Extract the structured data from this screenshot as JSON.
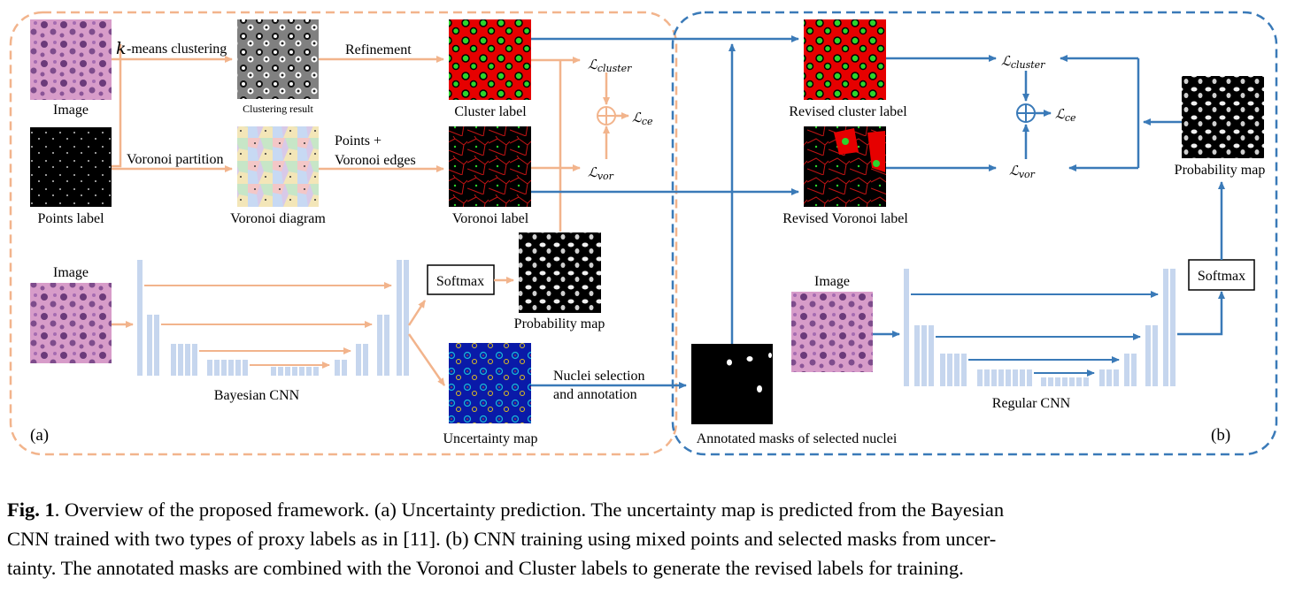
{
  "panel_a": {
    "tag": "(a)",
    "image_label": "Image",
    "kmeans_k": "k",
    "kmeans_label": "-means clustering",
    "clustering_result": "Clustering result",
    "refinement": "Refinement",
    "cluster_label": "Cluster label",
    "points_label": "Points label",
    "voronoi_partition": "Voronoi partition",
    "voronoi_diagram": "Voronoi diagram",
    "points_plus": "Points +",
    "voronoi_edges": "Voronoi edges",
    "voronoi_label": "Voronoi label",
    "loss_cluster_main": "ℒ",
    "loss_cluster_sub": "cluster",
    "loss_ce_sub": "ce",
    "loss_vor_sub": "vor",
    "image2_label": "Image",
    "softmax": "Softmax",
    "probability_map": "Probability map",
    "bayesian_cnn": "Bayesian CNN",
    "uncertainty_map": "Uncertainty map",
    "nuclei_selection": "Nuclei selection",
    "and_annotation": "and annotation"
  },
  "panel_b": {
    "tag": "(b)",
    "annotated_masks": "Annotated masks of selected nuclei",
    "revised_cluster_label": "Revised cluster label",
    "revised_voronoi_label": "Revised Voronoi label",
    "image_label": "Image",
    "regular_cnn": "Regular CNN",
    "softmax": "Softmax",
    "probability_map": "Probability map"
  },
  "caption": {
    "fig_label": "Fig. 1",
    "line1": ". Overview of the proposed framework. (a) Uncertainty prediction. The uncertainty map is predicted from the Bayesian",
    "line2": "CNN trained with two types of proxy labels as in [11]. (b) CNN training using mixed points and selected masks from uncer-",
    "line3": "tainty. The annotated masks are combined with the Voronoi and Cluster labels to generate the revised labels for training."
  },
  "colors": {
    "orange": "#f2b48c",
    "blue": "#3a7ab8",
    "cnn_block": "#c6d6ee",
    "histology": "#b77aa8"
  }
}
